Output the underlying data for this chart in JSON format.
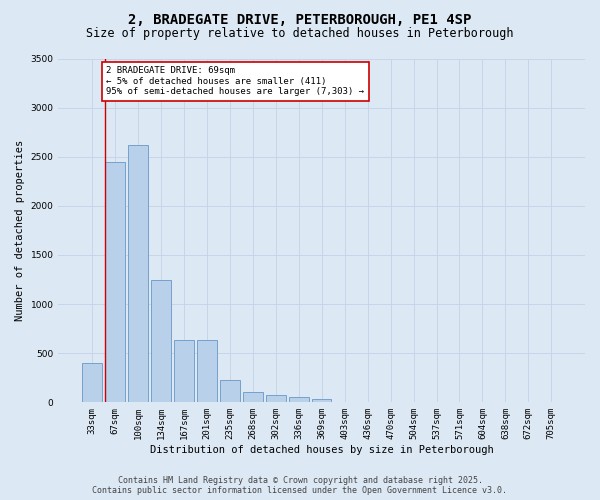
{
  "title": "2, BRADEGATE DRIVE, PETERBOROUGH, PE1 4SP",
  "subtitle": "Size of property relative to detached houses in Peterborough",
  "xlabel": "Distribution of detached houses by size in Peterborough",
  "ylabel": "Number of detached properties",
  "categories": [
    "33sqm",
    "67sqm",
    "100sqm",
    "134sqm",
    "167sqm",
    "201sqm",
    "235sqm",
    "268sqm",
    "302sqm",
    "336sqm",
    "369sqm",
    "403sqm",
    "436sqm",
    "470sqm",
    "504sqm",
    "537sqm",
    "571sqm",
    "604sqm",
    "638sqm",
    "672sqm",
    "705sqm"
  ],
  "values": [
    400,
    2450,
    2620,
    1250,
    630,
    630,
    230,
    105,
    75,
    55,
    30,
    0,
    0,
    0,
    0,
    0,
    0,
    0,
    0,
    0,
    0
  ],
  "bar_color": "#b8d0ea",
  "bar_edge_color": "#6898c8",
  "annotation_box_text": "2 BRADEGATE DRIVE: 69sqm\n← 5% of detached houses are smaller (411)\n95% of semi-detached houses are larger (7,303) →",
  "annotation_box_color": "#ffffff",
  "annotation_box_edge_color": "#cc0000",
  "grid_color": "#c8d4e8",
  "background_color": "#dce8f4",
  "ylim": [
    0,
    3500
  ],
  "yticks": [
    0,
    500,
    1000,
    1500,
    2000,
    2500,
    3000,
    3500
  ],
  "footer_line1": "Contains HM Land Registry data © Crown copyright and database right 2025.",
  "footer_line2": "Contains public sector information licensed under the Open Government Licence v3.0.",
  "title_fontsize": 10,
  "subtitle_fontsize": 8.5,
  "tick_fontsize": 6.5,
  "ylabel_fontsize": 7.5,
  "xlabel_fontsize": 7.5,
  "annotation_fontsize": 6.5,
  "footer_fontsize": 6.0
}
